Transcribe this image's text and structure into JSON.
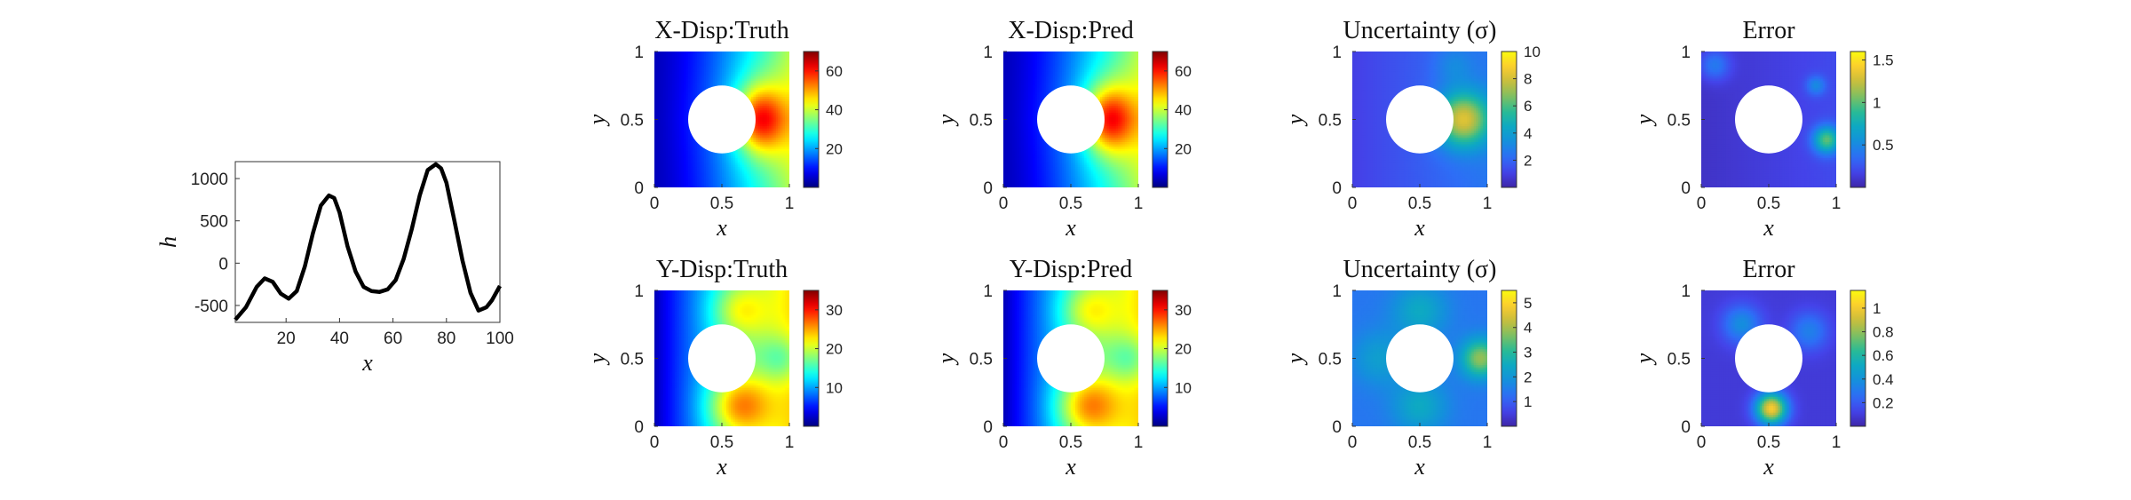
{
  "chart_data": [
    {
      "type": "line",
      "xlabel": "x",
      "ylabel": "h",
      "xlim": [
        1,
        100
      ],
      "ylim": [
        -700,
        1200
      ],
      "xticks": [
        "20",
        "40",
        "60",
        "80",
        "100"
      ],
      "yticks": [
        "-500",
        "0",
        "500",
        "1000"
      ],
      "series": [
        {
          "x": [
            1,
            5,
            9,
            12,
            15,
            18,
            21,
            24,
            27,
            30,
            33,
            36,
            38,
            40,
            43,
            46,
            49,
            52,
            55,
            58,
            61,
            64,
            67,
            70,
            73,
            76,
            78,
            80,
            83,
            86,
            89,
            92,
            95,
            97,
            100
          ],
          "values": [
            -670,
            -520,
            -280,
            -180,
            -220,
            -360,
            -420,
            -330,
            -40,
            350,
            680,
            800,
            770,
            600,
            200,
            -100,
            -280,
            -330,
            -340,
            -310,
            -200,
            50,
            400,
            800,
            1100,
            1170,
            1120,
            950,
            500,
            30,
            -350,
            -560,
            -520,
            -440,
            -270
          ]
        }
      ]
    },
    {
      "type": "heatmap",
      "title": "X-Disp:Truth",
      "xlabel": "x",
      "ylabel": "y",
      "colormap": "jet",
      "field": "x-disp",
      "clim": [
        0,
        70
      ],
      "colorbar_ticks": [
        "20",
        "40",
        "60"
      ],
      "xticks": [
        "0",
        "0.5",
        "1"
      ],
      "yticks": [
        "0",
        "0.5",
        "1"
      ]
    },
    {
      "type": "heatmap",
      "title": "X-Disp:Pred",
      "xlabel": "x",
      "ylabel": "y",
      "colormap": "jet",
      "field": "x-disp",
      "clim": [
        0,
        70
      ],
      "colorbar_ticks": [
        "20",
        "40",
        "60"
      ],
      "xticks": [
        "0",
        "0.5",
        "1"
      ],
      "yticks": [
        "0",
        "0.5",
        "1"
      ]
    },
    {
      "type": "heatmap",
      "title": "Uncertainty (σ)",
      "xlabel": "x",
      "ylabel": "y",
      "colormap": "parula",
      "field": "x-unc",
      "clim": [
        0,
        10
      ],
      "colorbar_ticks": [
        "2",
        "4",
        "6",
        "8",
        "10"
      ],
      "xticks": [
        "0",
        "0.5",
        "1"
      ],
      "yticks": [
        "0",
        "0.5",
        "1"
      ]
    },
    {
      "type": "heatmap",
      "title": "Error",
      "xlabel": "x",
      "ylabel": "y",
      "colormap": "parula",
      "field": "x-err",
      "clim": [
        0,
        1.6
      ],
      "colorbar_ticks": [
        "0.5",
        "1",
        "1.5"
      ],
      "xticks": [
        "0",
        "0.5",
        "1"
      ],
      "yticks": [
        "0",
        "0.5",
        "1"
      ]
    },
    {
      "type": "heatmap",
      "title": "Y-Disp:Truth",
      "xlabel": "x",
      "ylabel": "y",
      "colormap": "jet",
      "field": "y-disp",
      "clim": [
        0,
        35
      ],
      "colorbar_ticks": [
        "10",
        "20",
        "30"
      ],
      "xticks": [
        "0",
        "0.5",
        "1"
      ],
      "yticks": [
        "0",
        "0.5",
        "1"
      ]
    },
    {
      "type": "heatmap",
      "title": "Y-Disp:Pred",
      "xlabel": "x",
      "ylabel": "y",
      "colormap": "jet",
      "field": "y-disp",
      "clim": [
        0,
        35
      ],
      "colorbar_ticks": [
        "10",
        "20",
        "30"
      ],
      "xticks": [
        "0",
        "0.5",
        "1"
      ],
      "yticks": [
        "0",
        "0.5",
        "1"
      ]
    },
    {
      "type": "heatmap",
      "title": "Uncertainty (σ)",
      "xlabel": "x",
      "ylabel": "y",
      "colormap": "parula",
      "field": "y-unc",
      "clim": [
        0,
        5.5
      ],
      "colorbar_ticks": [
        "1",
        "2",
        "3",
        "4",
        "5"
      ],
      "xticks": [
        "0",
        "0.5",
        "1"
      ],
      "yticks": [
        "0",
        "0.5",
        "1"
      ]
    },
    {
      "type": "heatmap",
      "title": "Error",
      "xlabel": "x",
      "ylabel": "y",
      "colormap": "parula",
      "field": "y-err",
      "clim": [
        0,
        1.15
      ],
      "colorbar_ticks": [
        "0.2",
        "0.4",
        "0.6",
        "0.8",
        "1"
      ],
      "xticks": [
        "0",
        "0.5",
        "1"
      ],
      "yticks": [
        "0",
        "0.5",
        "1"
      ]
    }
  ]
}
